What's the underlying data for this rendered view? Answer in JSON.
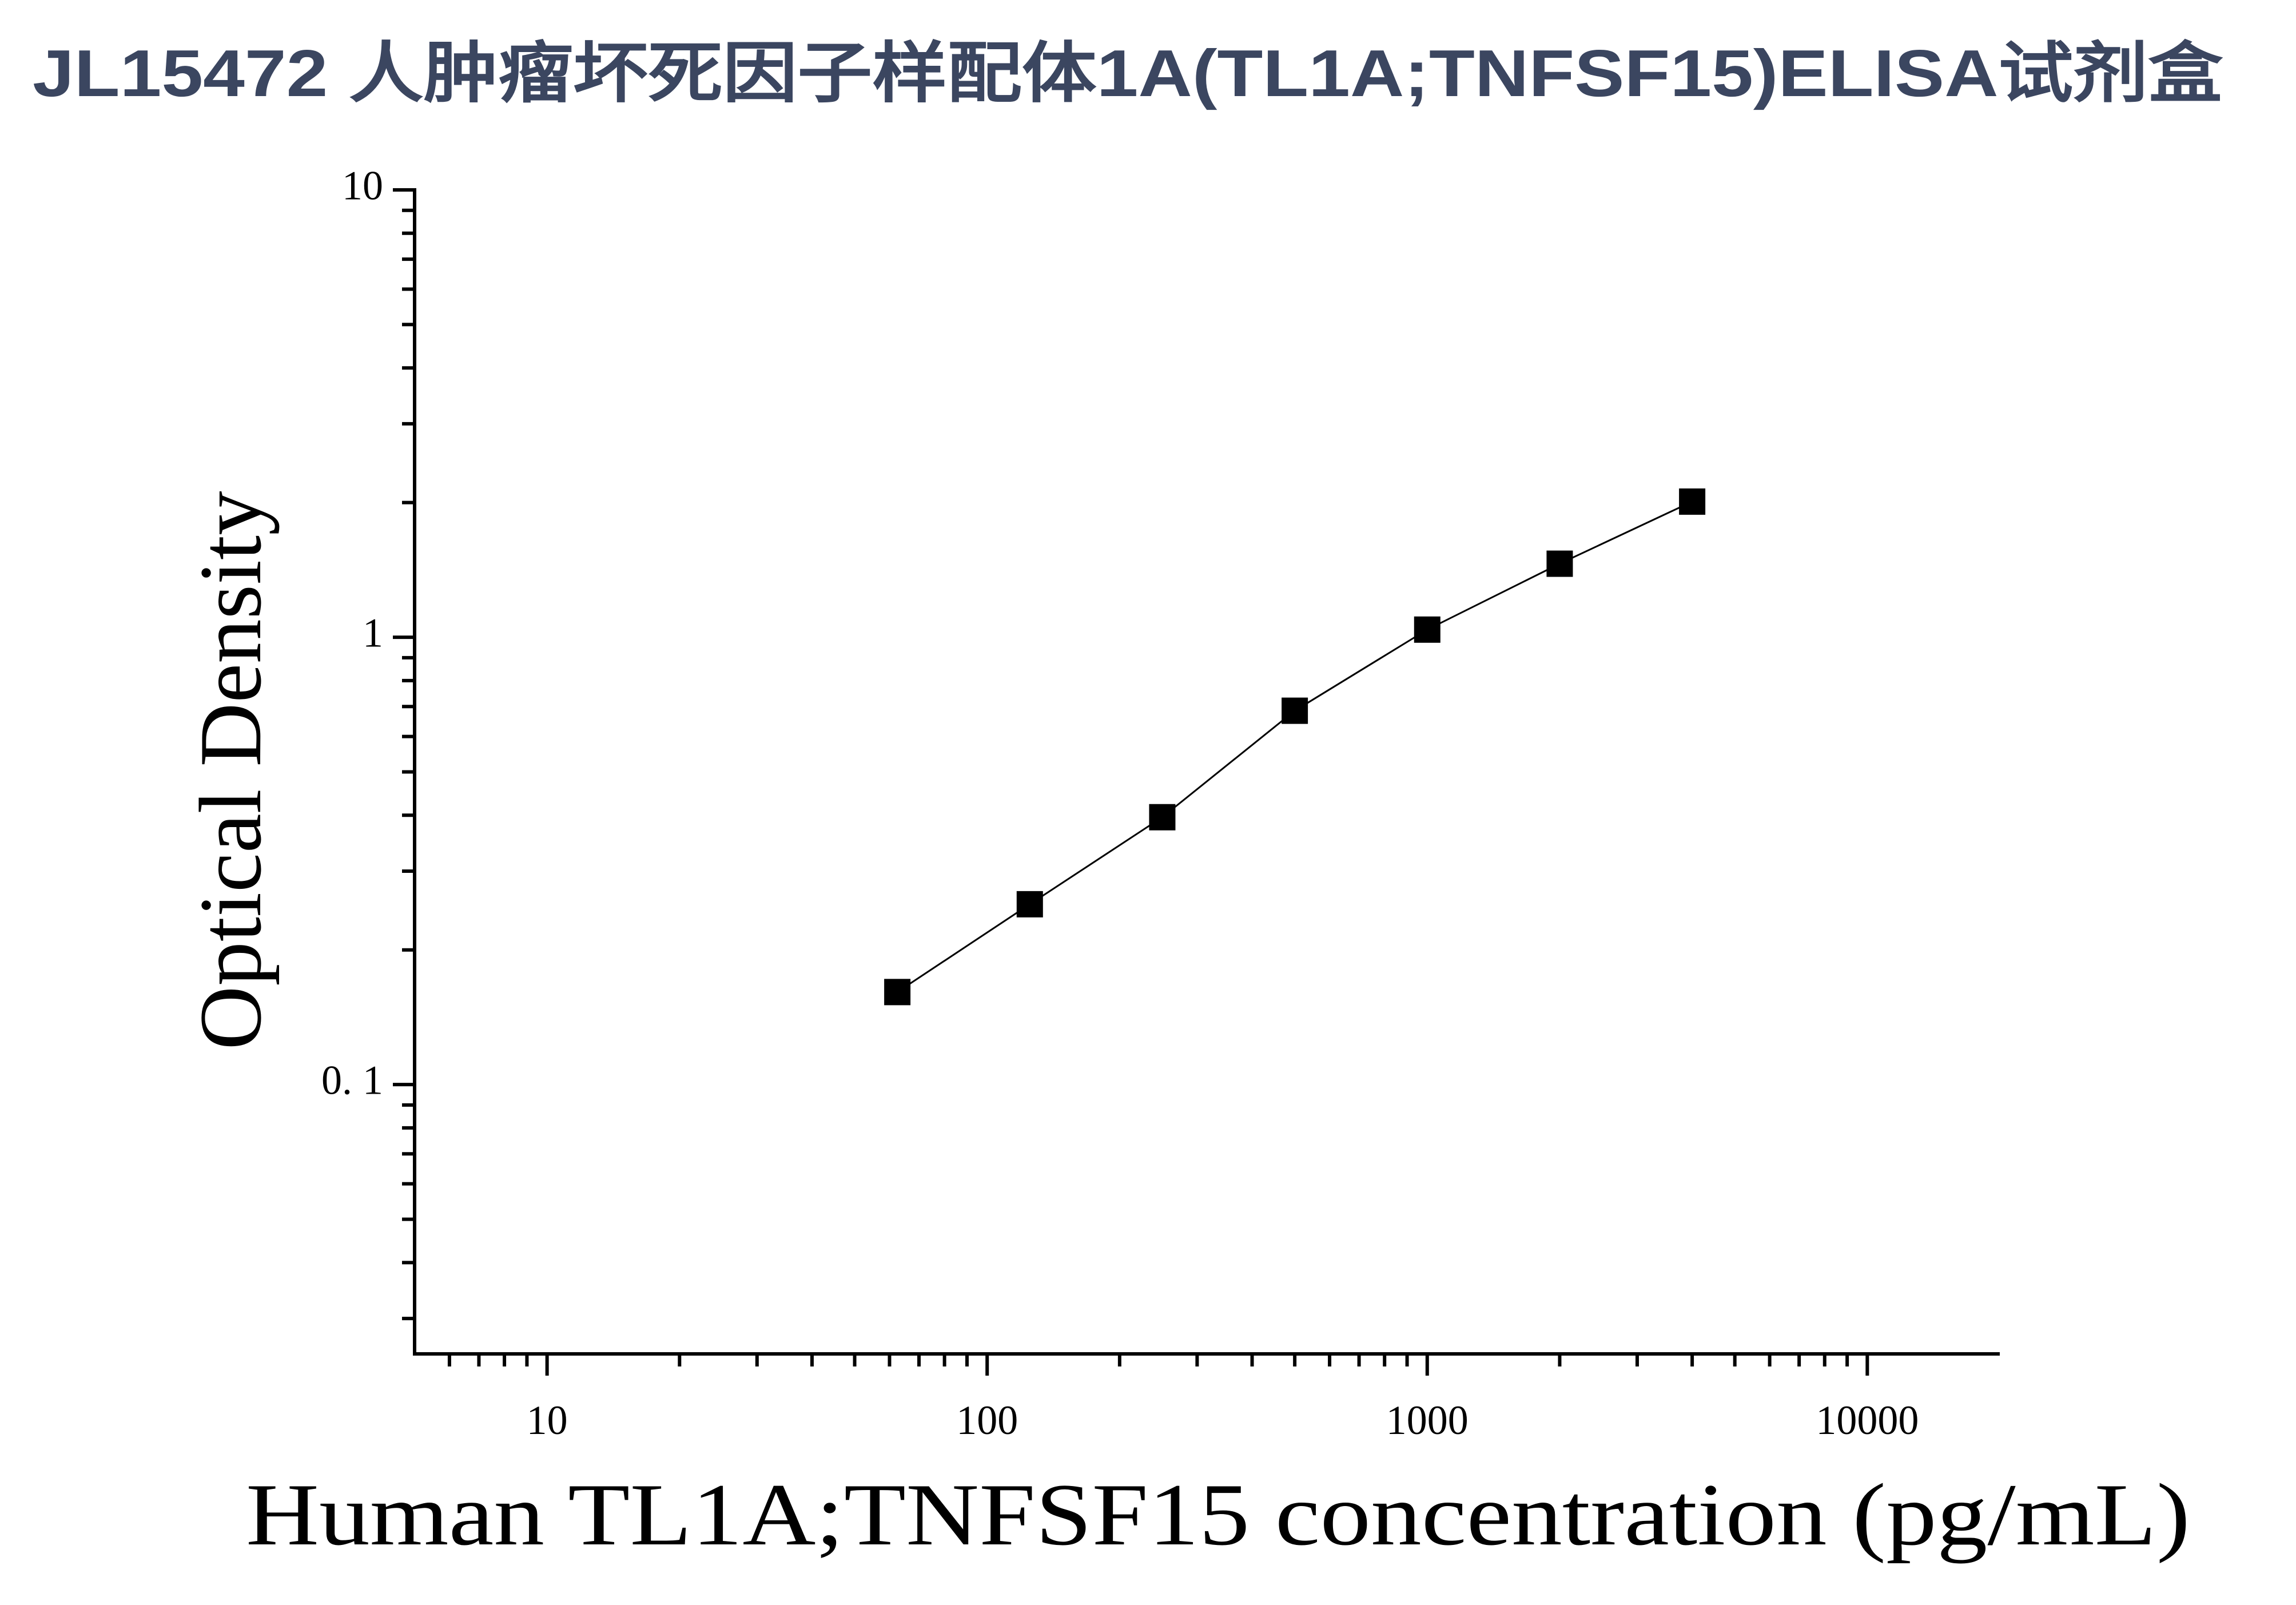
{
  "chart_data": {
    "type": "scatter",
    "title": "JL15472 人肿瘤坏死因子样配体1A(TL1A;TNFSF15)ELISA试剂盒",
    "x_label": "Human TL1A;TNFSF15 concentration (pg/mL)",
    "y_label": "Optical Density",
    "x_scale": "log",
    "y_scale": "log",
    "xlim": [
      5,
      20000
    ],
    "ylim": [
      0.025,
      10
    ],
    "xticks": [
      10,
      100,
      1000,
      10000
    ],
    "yticks": [
      {
        "value": 0.1,
        "label": "0. 1"
      },
      1,
      10
    ],
    "xminorticks": [
      6,
      7,
      8,
      9,
      20,
      30,
      40,
      50,
      60,
      70,
      80,
      90,
      200,
      300,
      400,
      500,
      600,
      700,
      800,
      900,
      2000,
      3000,
      4000,
      5000,
      6000,
      7000,
      8000,
      9000
    ],
    "yminorticks": [
      0.03,
      0.04,
      0.05,
      0.06,
      0.07,
      0.08,
      0.09,
      0.2,
      0.3,
      0.4,
      0.5,
      0.6,
      0.7,
      0.8,
      0.9,
      2,
      3,
      4,
      5,
      6,
      7,
      8,
      9
    ],
    "series": [
      {
        "color": "#000000",
        "x": [
          62.5,
          125,
          250,
          500,
          1000,
          2000,
          4000
        ],
        "values": [
          0.161,
          0.253,
          0.396,
          0.685,
          1.04,
          1.46,
          2.01
        ]
      }
    ]
  }
}
